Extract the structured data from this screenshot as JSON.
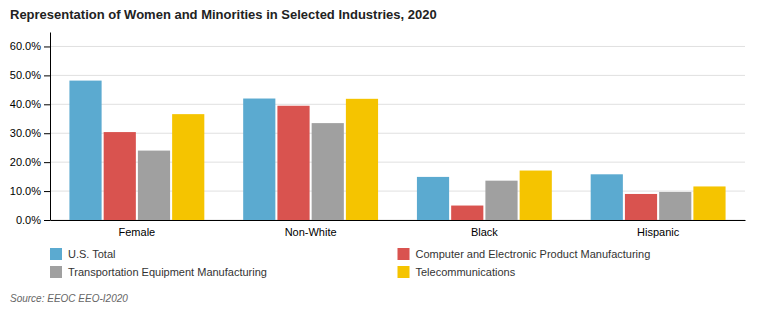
{
  "chart_data": {
    "type": "bar",
    "title": "Representation of Women and Minorities in Selected Industries, 2020",
    "categories": [
      "Female",
      "Non-White",
      "Black",
      "Hispanic"
    ],
    "series": [
      {
        "name": "U.S. Total",
        "color": "#5BAAD0",
        "values": [
          0.482,
          0.42,
          0.149,
          0.158
        ]
      },
      {
        "name": "Computer and Electronic Product Manufacturing",
        "color": "#D9534F",
        "values": [
          0.304,
          0.395,
          0.05,
          0.09
        ]
      },
      {
        "name": "Transportation Equipment Manufacturing",
        "color": "#A0A0A0",
        "values": [
          0.24,
          0.335,
          0.136,
          0.097
        ]
      },
      {
        "name": "Telecommunications",
        "color": "#F5C400",
        "values": [
          0.366,
          0.419,
          0.171,
          0.116
        ]
      }
    ],
    "ylim": [
      0,
      0.65
    ],
    "yticks": [
      {
        "value": 0.0,
        "label": "0.0%"
      },
      {
        "value": 0.1,
        "label": "10.0%"
      },
      {
        "value": 0.2,
        "label": "20.0%"
      },
      {
        "value": 0.3,
        "label": "30.0%"
      },
      {
        "value": 0.4,
        "label": "40.0%"
      },
      {
        "value": 0.5,
        "label": "50.0%"
      },
      {
        "value": 0.6,
        "label": "60.0%"
      }
    ],
    "grid": true,
    "legend": "bottom",
    "annotations": [
      "Source: EEOC EEO-I2020"
    ]
  }
}
